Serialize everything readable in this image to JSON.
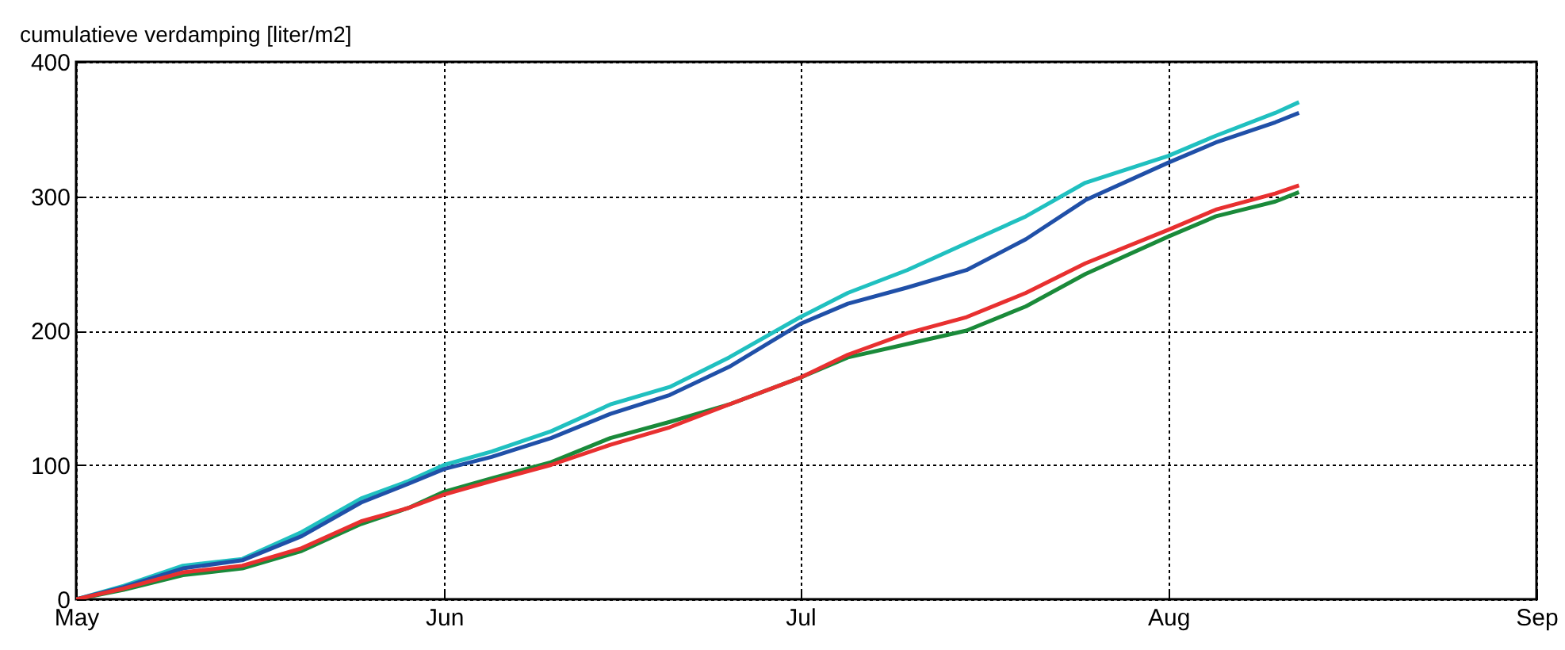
{
  "chart_data": {
    "type": "line",
    "ylabel": "cumulatieve verdamping [liter/m2]",
    "x": [
      "--05-01",
      "--05-05",
      "--05-10",
      "--05-15",
      "--05-20",
      "--05-25",
      "--05-29",
      "--06-01",
      "--06-05",
      "--06-10",
      "--06-15",
      "--06-20",
      "--06-25",
      "--07-01",
      "--07-05",
      "--07-10",
      "--07-15",
      "--07-20",
      "--07-25",
      "--08-01",
      "--08-05",
      "--08-10",
      "--08-12"
    ],
    "series": [
      {
        "color": "#20c0c0",
        "values": [
          0,
          10,
          25,
          30,
          50,
          75,
          88,
          100,
          110,
          125,
          145,
          158,
          180,
          210,
          228,
          245,
          265,
          285,
          310,
          330,
          345,
          362,
          370
        ]
      },
      {
        "color": "#2050a8",
        "values": [
          0,
          9,
          23,
          29,
          47,
          72,
          86,
          97,
          106,
          120,
          138,
          152,
          173,
          205,
          220,
          232,
          245,
          268,
          297,
          325,
          340,
          355,
          362
        ]
      },
      {
        "color": "#1a8a3a",
        "values": [
          0,
          7,
          18,
          23,
          36,
          56,
          68,
          80,
          90,
          102,
          120,
          132,
          145,
          165,
          180,
          190,
          200,
          218,
          242,
          270,
          285,
          296,
          303
        ]
      },
      {
        "color": "#e83030",
        "values": [
          0,
          8,
          20,
          25,
          38,
          58,
          68,
          78,
          88,
          100,
          115,
          128,
          145,
          165,
          182,
          198,
          210,
          228,
          250,
          275,
          290,
          302,
          308
        ]
      }
    ],
    "xlim": [
      "--05-01",
      "--09-01"
    ],
    "xticks": [
      {
        "value": "--05-01",
        "label": "May"
      },
      {
        "value": "--06-01",
        "label": "Jun"
      },
      {
        "value": "--07-01",
        "label": "Jul"
      },
      {
        "value": "--08-01",
        "label": "Aug"
      },
      {
        "value": "--09-01",
        "label": "Sep"
      }
    ],
    "ylim": [
      0,
      400
    ],
    "yticks": [
      0,
      100,
      200,
      300,
      400
    ],
    "grid": true,
    "line_style": "solid",
    "legend": false
  }
}
